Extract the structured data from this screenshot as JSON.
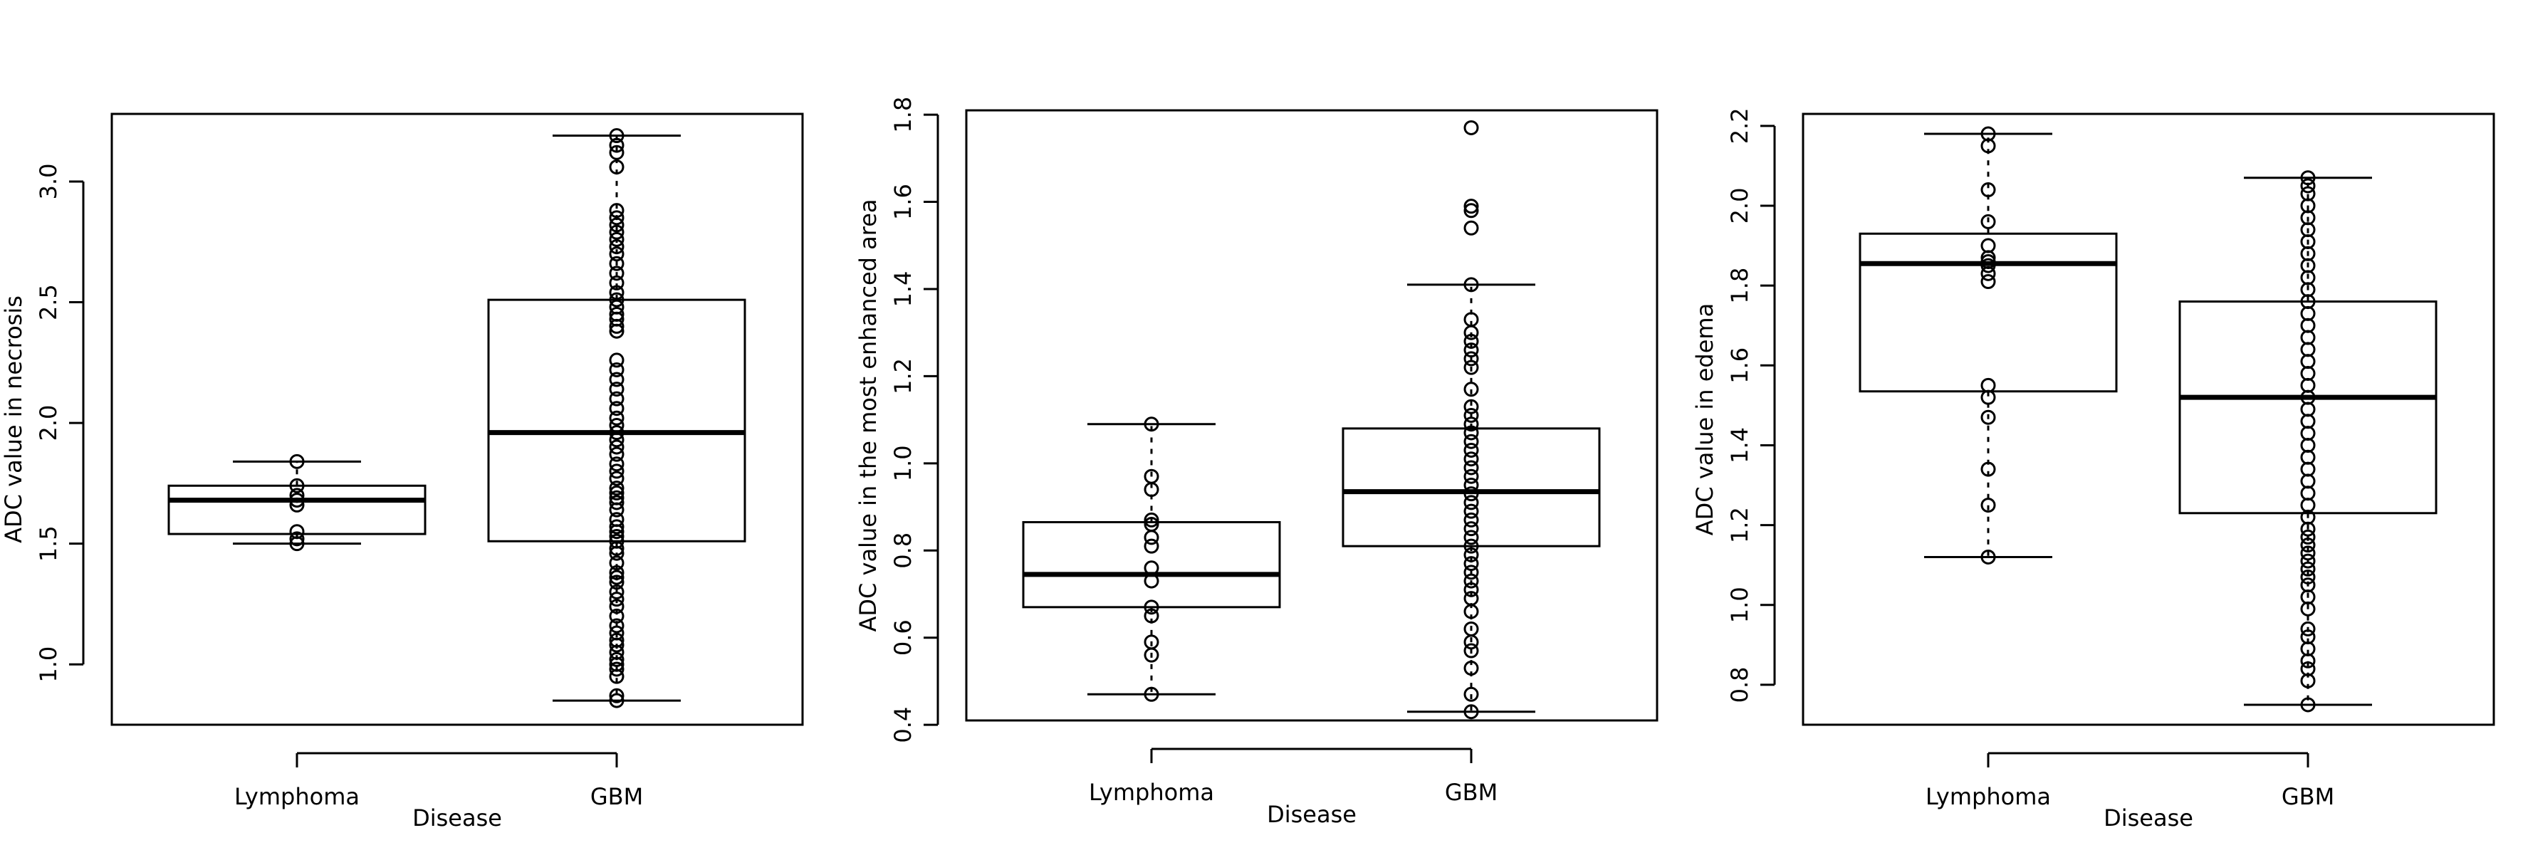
{
  "chart_data": [
    {
      "type": "box",
      "title": "",
      "xlabel": "Disease",
      "ylabel": "ADC value in necrosis",
      "categories": [
        "Lymphoma",
        "GBM"
      ],
      "ylim": [
        0.75,
        3.28
      ],
      "yticks": [
        1.0,
        1.5,
        2.0,
        2.5,
        3.0
      ],
      "ytick_labels": [
        "1.0",
        "1.5",
        "2.0",
        "2.5",
        "3.0"
      ],
      "boxes": [
        {
          "category": "Lymphoma",
          "whisker_low": 1.5,
          "q1": 1.54,
          "median": 1.68,
          "q3": 1.74,
          "whisker_high": 1.84
        },
        {
          "category": "GBM",
          "whisker_low": 0.85,
          "q1": 1.51,
          "median": 1.96,
          "q3": 2.51,
          "whisker_high": 3.19
        }
      ],
      "points": [
        {
          "category": "Lymphoma",
          "values": [
            1.5,
            1.52,
            1.55,
            1.66,
            1.68,
            1.7,
            1.74,
            1.84
          ]
        },
        {
          "category": "GBM",
          "values": [
            0.85,
            0.87,
            0.95,
            0.98,
            1.0,
            1.02,
            1.05,
            1.08,
            1.1,
            1.13,
            1.16,
            1.2,
            1.24,
            1.27,
            1.3,
            1.34,
            1.36,
            1.38,
            1.42,
            1.46,
            1.48,
            1.51,
            1.53,
            1.55,
            1.57,
            1.6,
            1.64,
            1.67,
            1.69,
            1.71,
            1.73,
            1.77,
            1.8,
            1.83,
            1.87,
            1.9,
            1.93,
            1.96,
            1.99,
            2.02,
            2.06,
            2.1,
            2.14,
            2.18,
            2.22,
            2.26,
            2.38,
            2.4,
            2.43,
            2.45,
            2.48,
            2.51,
            2.54,
            2.58,
            2.62,
            2.66,
            2.7,
            2.73,
            2.76,
            2.79,
            2.82,
            2.85,
            2.88,
            3.06,
            3.12,
            3.15,
            3.19
          ]
        }
      ]
    },
    {
      "type": "box",
      "title": "",
      "xlabel": "Disease",
      "ylabel": "ADC value in the most enhanced area",
      "categories": [
        "Lymphoma",
        "GBM"
      ],
      "ylim": [
        0.41,
        1.81
      ],
      "yticks": [
        0.4,
        0.6,
        0.8,
        1.0,
        1.2,
        1.4,
        1.6,
        1.8
      ],
      "ytick_labels": [
        "0.4",
        "0.6",
        "0.8",
        "1.0",
        "1.2",
        "1.4",
        "1.6",
        "1.8"
      ],
      "boxes": [
        {
          "category": "Lymphoma",
          "whisker_low": 0.47,
          "q1": 0.67,
          "median": 0.745,
          "q3": 0.865,
          "whisker_high": 1.09
        },
        {
          "category": "GBM",
          "whisker_low": 0.43,
          "q1": 0.81,
          "median": 0.935,
          "q3": 1.08,
          "whisker_high": 1.41
        }
      ],
      "points": [
        {
          "category": "Lymphoma",
          "values": [
            0.47,
            0.56,
            0.59,
            0.65,
            0.67,
            0.73,
            0.76,
            0.81,
            0.83,
            0.86,
            0.87,
            0.94,
            0.97,
            1.09
          ]
        },
        {
          "category": "GBM",
          "values": [
            0.43,
            0.47,
            0.53,
            0.57,
            0.59,
            0.62,
            0.66,
            0.69,
            0.71,
            0.73,
            0.75,
            0.77,
            0.79,
            0.81,
            0.83,
            0.85,
            0.87,
            0.89,
            0.91,
            0.93,
            0.95,
            0.97,
            0.99,
            1.01,
            1.03,
            1.05,
            1.07,
            1.09,
            1.11,
            1.13,
            1.17,
            1.22,
            1.24,
            1.26,
            1.28,
            1.3,
            1.33,
            1.41,
            1.54,
            1.58,
            1.59,
            1.77
          ]
        }
      ]
    },
    {
      "type": "box",
      "title": "",
      "xlabel": "Disease",
      "ylabel": "ADC value in edema",
      "categories": [
        "Lymphoma",
        "GBM"
      ],
      "ylim": [
        0.7,
        2.23
      ],
      "yticks": [
        0.8,
        1.0,
        1.2,
        1.4,
        1.6,
        1.8,
        2.0,
        2.2
      ],
      "ytick_labels": [
        "0.8",
        "1.0",
        "1.2",
        "1.4",
        "1.6",
        "1.8",
        "2.0",
        "2.2"
      ],
      "boxes": [
        {
          "category": "Lymphoma",
          "whisker_low": 1.12,
          "q1": 1.535,
          "median": 1.855,
          "q3": 1.93,
          "whisker_high": 2.18
        },
        {
          "category": "GBM",
          "whisker_low": 0.75,
          "q1": 1.23,
          "median": 1.52,
          "q3": 1.76,
          "whisker_high": 2.07
        }
      ],
      "points": [
        {
          "category": "Lymphoma",
          "values": [
            1.12,
            1.25,
            1.34,
            1.47,
            1.52,
            1.55,
            1.81,
            1.83,
            1.85,
            1.86,
            1.87,
            1.9,
            1.96,
            2.04,
            2.15,
            2.18
          ]
        },
        {
          "category": "GBM",
          "values": [
            0.75,
            0.81,
            0.84,
            0.86,
            0.89,
            0.92,
            0.94,
            0.99,
            1.02,
            1.05,
            1.07,
            1.09,
            1.11,
            1.13,
            1.15,
            1.17,
            1.19,
            1.22,
            1.25,
            1.28,
            1.31,
            1.34,
            1.37,
            1.4,
            1.43,
            1.46,
            1.49,
            1.52,
            1.55,
            1.58,
            1.61,
            1.64,
            1.67,
            1.7,
            1.73,
            1.76,
            1.79,
            1.82,
            1.85,
            1.88,
            1.91,
            1.94,
            1.97,
            2.0,
            2.03,
            2.05,
            2.07
          ]
        }
      ]
    }
  ]
}
